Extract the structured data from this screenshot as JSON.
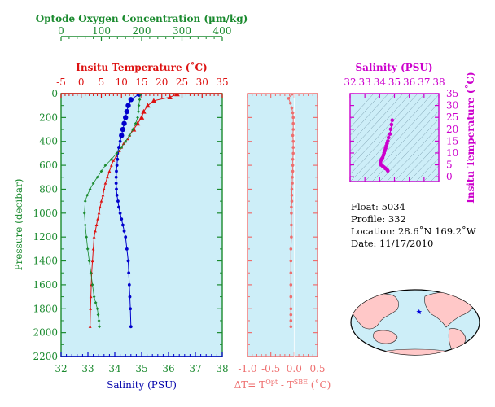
{
  "colors": {
    "oxygen": "#1a8a2e",
    "temperature": "#dd1111",
    "salinity": "#0000cc",
    "delta": "#ee6e6e",
    "ts": "#cc00cc",
    "panel_bg": "#cdeef8",
    "land": "#ffc8c8",
    "float_marker": "#0000dd"
  },
  "chart_data": [
    {
      "type": "line",
      "panel": "profiles",
      "ylabel": "Pressure (decibar)",
      "ylim": [
        0,
        2200
      ],
      "y_inverted": true,
      "y_ticks": [
        0,
        200,
        400,
        600,
        800,
        1000,
        1200,
        1400,
        1600,
        1800,
        2000,
        2200
      ],
      "axes": {
        "oxygen": {
          "label": "Optode Oxygen Concentration (µm/kg)",
          "lim": [
            0,
            400
          ],
          "ticks": [
            0,
            100,
            200,
            300,
            400
          ]
        },
        "temperature": {
          "label": "Insitu Temperature (˚C)",
          "lim": [
            -5,
            35
          ],
          "ticks": [
            -5,
            0,
            5,
            10,
            15,
            20,
            25,
            30,
            35
          ]
        },
        "salinity": {
          "label": "Salinity (PSU)",
          "lim": [
            32,
            38
          ],
          "ticks": [
            32,
            33,
            34,
            35,
            36,
            37,
            38
          ]
        }
      },
      "series": [
        {
          "axis": "temperature",
          "marker": "triangle",
          "x": [
            23.8,
            22,
            18,
            16.5,
            15.5,
            15,
            14,
            13,
            12,
            11.5,
            11,
            10.5,
            10,
            9.5,
            8.8,
            8,
            7.5,
            7,
            6.5,
            6,
            5.7,
            5.4,
            5,
            4.7,
            4.4,
            4.1,
            3.8,
            3.5,
            3.2,
            3.0,
            2.8,
            2.6,
            2.5,
            2.4,
            2.3,
            2.2
          ],
          "y": [
            5,
            30,
            60,
            100,
            150,
            200,
            250,
            300,
            350,
            380,
            400,
            420,
            450,
            480,
            520,
            560,
            600,
            650,
            700,
            750,
            800,
            850,
            900,
            950,
            1000,
            1050,
            1100,
            1150,
            1200,
            1300,
            1400,
            1500,
            1600,
            1700,
            1800,
            1950
          ]
        },
        {
          "axis": "salinity",
          "marker": "circle",
          "x": [
            34.9,
            34.6,
            34.5,
            34.45,
            34.4,
            34.35,
            34.3,
            34.25,
            34.2,
            34.15,
            34.1,
            34.1,
            34.08,
            34.06,
            34.05,
            34.05,
            34.06,
            34.08,
            34.12,
            34.15,
            34.2,
            34.25,
            34.3,
            34.35,
            34.4,
            34.45,
            34.5,
            34.52,
            34.54,
            34.56,
            34.58,
            34.6
          ],
          "y": [
            5,
            50,
            100,
            150,
            200,
            250,
            300,
            350,
            400,
            450,
            500,
            550,
            600,
            650,
            700,
            750,
            800,
            850,
            900,
            950,
            1000,
            1050,
            1100,
            1150,
            1200,
            1300,
            1400,
            1500,
            1600,
            1700,
            1800,
            1950
          ]
        },
        {
          "axis": "oxygen",
          "marker": "diamond",
          "x": [
            197,
            195,
            193,
            192,
            190,
            185,
            178,
            170,
            160,
            150,
            138,
            125,
            110,
            100,
            90,
            80,
            72,
            65,
            60,
            58,
            60,
            63,
            66,
            70,
            74,
            78,
            82,
            86,
            90,
            92,
            94,
            95
          ],
          "y": [
            5,
            50,
            100,
            150,
            200,
            250,
            300,
            350,
            400,
            450,
            500,
            550,
            600,
            650,
            700,
            750,
            800,
            850,
            900,
            1000,
            1100,
            1200,
            1300,
            1400,
            1500,
            1600,
            1700,
            1750,
            1800,
            1850,
            1900,
            1950
          ]
        }
      ]
    },
    {
      "type": "line",
      "panel": "delta",
      "xlabel": "ΔT= T",
      "xlabel_sup1": "Opt",
      "xlabel_mid": " - T",
      "xlabel_sup2": "SBE",
      "xlabel_end": " (˚C)",
      "xlim": [
        -1.0,
        0.5
      ],
      "x_ticks": [
        -1.0,
        -0.5,
        0.0,
        0.5
      ],
      "x_tick_labels": [
        "-1.0",
        "-0.5",
        "0.0",
        "0.5"
      ],
      "ylim": [
        0,
        2200
      ],
      "y_inverted": true,
      "series": [
        {
          "marker": "circle",
          "x": [
            -0.05,
            -0.12,
            -0.08,
            -0.05,
            -0.03,
            -0.02,
            -0.02,
            -0.02,
            -0.03,
            -0.02,
            -0.02,
            -0.02,
            -0.03,
            -0.03,
            -0.03,
            -0.04,
            -0.04,
            -0.05,
            -0.05,
            -0.05,
            -0.06,
            -0.06,
            -0.06,
            -0.06,
            -0.07,
            -0.07,
            -0.07,
            -0.07,
            -0.07,
            -0.07,
            -0.07,
            -0.07,
            -0.07
          ],
          "y": [
            5,
            40,
            80,
            120,
            160,
            200,
            250,
            300,
            350,
            400,
            450,
            500,
            550,
            600,
            650,
            700,
            750,
            800,
            850,
            900,
            950,
            1000,
            1100,
            1200,
            1300,
            1400,
            1500,
            1600,
            1700,
            1800,
            1850,
            1900,
            1950
          ]
        }
      ]
    },
    {
      "type": "scatter",
      "panel": "ts",
      "xlabel": "Salinity (PSU)",
      "xlim": [
        32,
        38
      ],
      "x_ticks": [
        32,
        33,
        34,
        35,
        36,
        37,
        38
      ],
      "ylabel": "Insitu Temperature (˚C)",
      "ylim": [
        -2,
        35
      ],
      "y_ticks": [
        0,
        5,
        10,
        15,
        20,
        25,
        30,
        35
      ],
      "series": [
        {
          "marker": "circle",
          "x": [
            34.85,
            34.8,
            34.75,
            34.7,
            34.6,
            34.55,
            34.5,
            34.45,
            34.4,
            34.35,
            34.3,
            34.25,
            34.2,
            34.15,
            34.1,
            34.05,
            34.1,
            34.2,
            34.3,
            34.4,
            34.5,
            34.55
          ],
          "y": [
            23.8,
            22,
            20,
            18,
            16.5,
            15,
            14,
            13,
            12,
            11,
            10,
            9,
            8,
            7.5,
            7,
            6,
            5,
            4.5,
            4,
            3.5,
            3,
            2.5
          ]
        }
      ]
    }
  ],
  "info": {
    "float": "Float:  5034",
    "profile": "Profile:  332",
    "location": "Location:  28.6˚N  169.2˚W",
    "date": "Date:  11/17/2010"
  },
  "map": {
    "float_lon": -169.2,
    "float_lat": 28.6
  }
}
